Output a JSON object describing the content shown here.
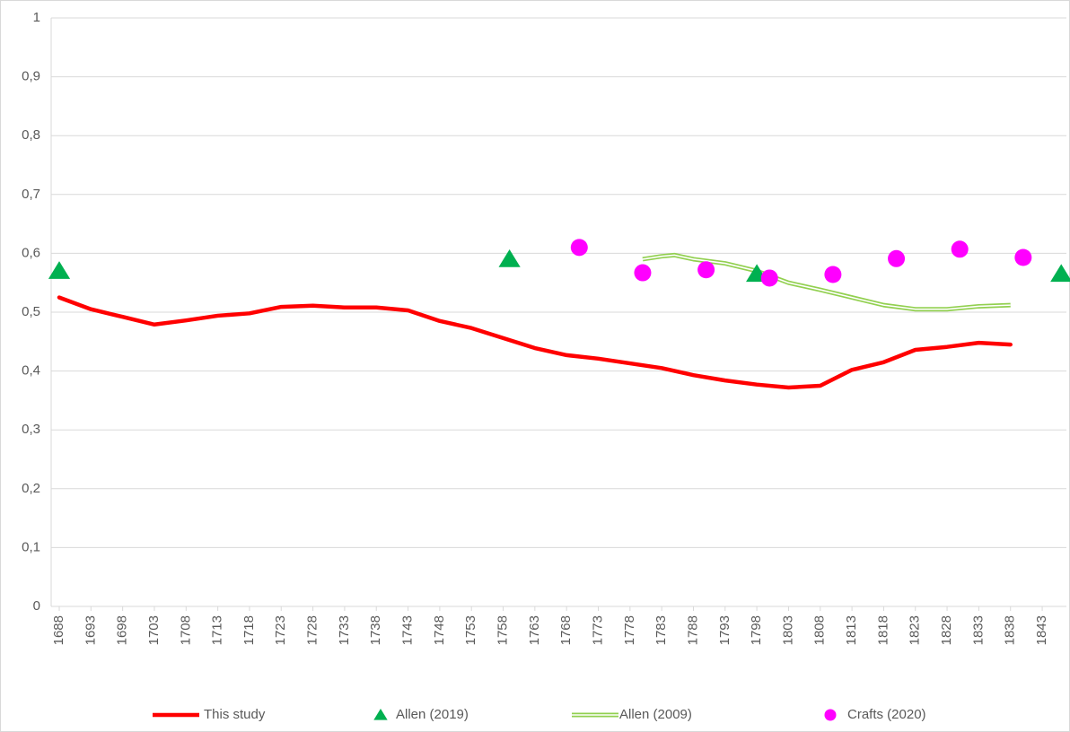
{
  "chart_data": {
    "type": "line",
    "xlim": [
      1688,
      1847
    ],
    "xticks": [
      1688,
      1693,
      1698,
      1703,
      1708,
      1713,
      1718,
      1723,
      1728,
      1733,
      1738,
      1743,
      1748,
      1753,
      1758,
      1763,
      1768,
      1773,
      1778,
      1783,
      1788,
      1793,
      1798,
      1803,
      1808,
      1813,
      1818,
      1823,
      1828,
      1833,
      1838,
      1843
    ],
    "ylim": [
      0,
      1
    ],
    "yticks": [
      0,
      {
        "value": 0.1,
        "label": "0,1"
      },
      {
        "value": 0.2,
        "label": "0,2"
      },
      {
        "value": 0.3,
        "label": "0,3"
      },
      {
        "value": 0.4,
        "label": "0,4"
      },
      {
        "value": 0.5,
        "label": "0,5"
      },
      {
        "value": 0.6,
        "label": "0,6"
      },
      {
        "value": 0.7,
        "label": "0,7"
      },
      {
        "value": 0.8,
        "label": "0,8"
      },
      {
        "value": 0.9,
        "label": "0,9"
      },
      1
    ],
    "grid": true,
    "legend": "bottom",
    "series": [
      {
        "name": "This study",
        "color": "#ff0000",
        "style": "line",
        "x": [
          1688,
          1693,
          1698,
          1703,
          1708,
          1713,
          1718,
          1723,
          1728,
          1733,
          1738,
          1743,
          1748,
          1753,
          1758,
          1763,
          1768,
          1773,
          1778,
          1783,
          1788,
          1793,
          1798,
          1803,
          1808,
          1813,
          1818,
          1823,
          1828,
          1833,
          1838
        ],
        "values": [
          0.525,
          0.505,
          0.492,
          0.479,
          0.486,
          0.494,
          0.498,
          0.509,
          0.511,
          0.508,
          0.508,
          0.503,
          0.485,
          0.473,
          0.456,
          0.439,
          0.427,
          0.421,
          0.413,
          0.405,
          0.393,
          0.384,
          0.377,
          0.372,
          0.375,
          0.402,
          0.415,
          0.436,
          0.441,
          0.448,
          0.445
        ]
      },
      {
        "name": "Allen (2019)",
        "color": "#00b050",
        "style": "triangle",
        "x": [
          1688,
          1759,
          1798,
          1846
        ],
        "values": [
          0.57,
          0.59,
          0.565,
          0.565
        ]
      },
      {
        "name": "Allen (2009)",
        "color": "#92d050",
        "style": "double-line",
        "x": [
          1780,
          1783,
          1785,
          1788,
          1793,
          1798,
          1803,
          1808,
          1813,
          1818,
          1823,
          1828,
          1833,
          1838
        ],
        "values": [
          0.59,
          0.595,
          0.597,
          0.59,
          0.583,
          0.57,
          0.55,
          0.538,
          0.525,
          0.512,
          0.505,
          0.505,
          0.51,
          0.512
        ]
      },
      {
        "name": "Crafts (2020)",
        "color": "#ff00ff",
        "style": "circle",
        "x": [
          1770,
          1780,
          1790,
          1800,
          1810,
          1820,
          1830,
          1840
        ],
        "values": [
          0.61,
          0.567,
          0.572,
          0.558,
          0.564,
          0.591,
          0.607,
          0.593
        ]
      }
    ]
  }
}
